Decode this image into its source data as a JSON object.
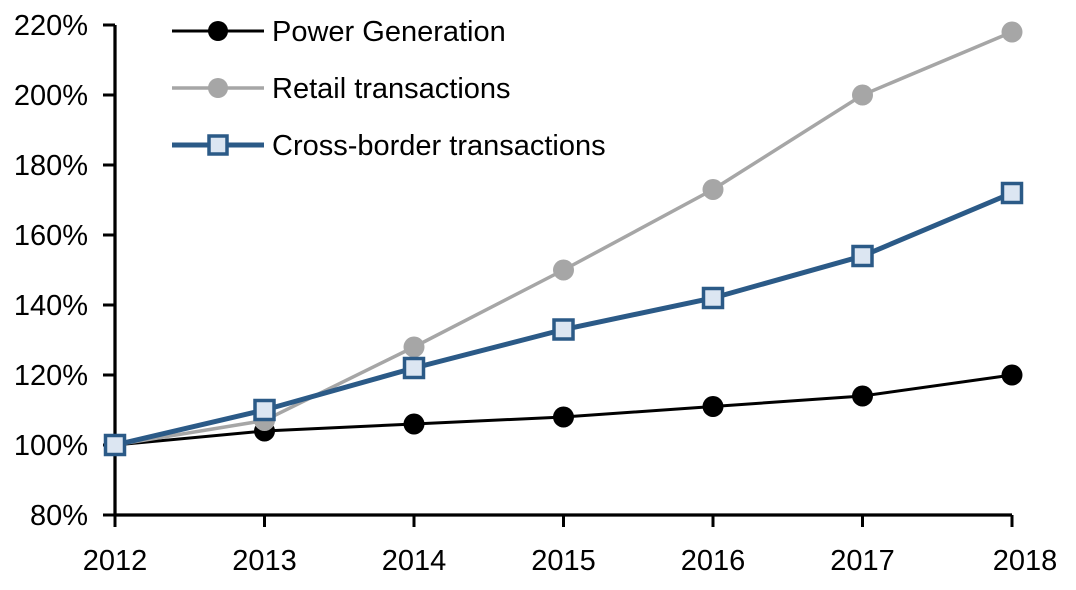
{
  "chart_data": {
    "type": "line",
    "title": "",
    "xlabel": "",
    "ylabel": "",
    "categories": [
      "2012",
      "2013",
      "2014",
      "2015",
      "2016",
      "2017",
      "2018"
    ],
    "series": [
      {
        "name": "Power Generation",
        "values": [
          100,
          104,
          106,
          108,
          111,
          114,
          120
        ],
        "color": "#000000",
        "marker": "circle",
        "marker_fill": "#000000",
        "line_width": 3
      },
      {
        "name": "Retail transactions",
        "values": [
          100,
          107,
          128,
          150,
          173,
          200,
          218
        ],
        "color": "#A6A6A6",
        "marker": "circle",
        "marker_fill": "#A6A6A6",
        "line_width": 3.5
      },
      {
        "name": "Cross-border transactions",
        "values": [
          100,
          110,
          122,
          133,
          142,
          154,
          172
        ],
        "color": "#2B5A87",
        "marker": "square",
        "marker_fill": "#DCE6F2",
        "marker_border": "#2B5A87",
        "line_width": 5
      }
    ],
    "ylim": [
      80,
      220
    ],
    "ytick_step": 20,
    "ytick_labels": [
      "80%",
      "100%",
      "120%",
      "140%",
      "160%",
      "180%",
      "200%",
      "220%"
    ],
    "xtick_labels": [
      "2012",
      "2013",
      "2014",
      "2015",
      "2016",
      "2017",
      "2018"
    ],
    "legend_position": "top-left",
    "legend_entries": [
      "Power Generation",
      "Retail transactions",
      "Cross-border transactions"
    ],
    "grid": false,
    "axis_color": "#000000",
    "background_color": "#FFFFFF"
  }
}
